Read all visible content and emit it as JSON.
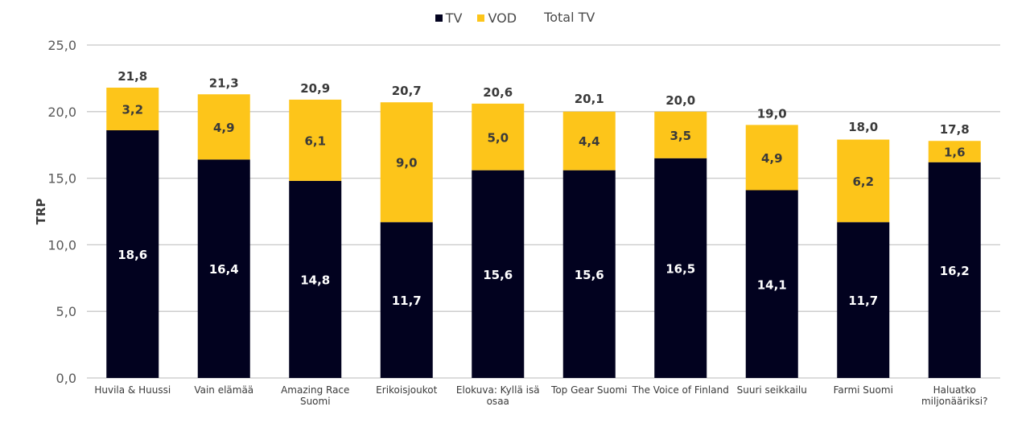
{
  "chart_data": {
    "type": "bar",
    "stacked": true,
    "title": "",
    "xlabel": "",
    "ylabel": "TRP",
    "ylim": [
      0,
      25
    ],
    "yticks": [
      0,
      5,
      10,
      15,
      20,
      25
    ],
    "ytick_labels": [
      "0,0",
      "5,0",
      "10,0",
      "15,0",
      "20,0",
      "25,0"
    ],
    "grid": true,
    "legend_position": "top-center",
    "categories": [
      "Huvila & Huussi",
      "Vain elämää",
      "Amazing Race Suomi",
      "Erikoisjoukot",
      "Elokuva: Kyllä isä osaa",
      "Top Gear Suomi",
      "The Voice of Finland",
      "Suuri seikkailu",
      "Farmi Suomi",
      "Haluatko miljonääriksi?"
    ],
    "category_label_lines": [
      [
        "Huvila & Huussi"
      ],
      [
        "Vain elämää"
      ],
      [
        "Amazing Race",
        "Suomi"
      ],
      [
        "Erikoisjoukot"
      ],
      [
        "Elokuva: Kyllä isä",
        "osaa"
      ],
      [
        "Top Gear Suomi"
      ],
      [
        "The Voice of Finland"
      ],
      [
        "Suuri seikkailu"
      ],
      [
        "Farmi Suomi"
      ],
      [
        "Haluatko",
        "miljonääriksi?"
      ]
    ],
    "series": [
      {
        "name": "TV",
        "color": "#02021f",
        "label_color": "#ffffff",
        "values": [
          18.6,
          16.4,
          14.8,
          11.7,
          15.6,
          15.6,
          16.5,
          14.1,
          11.7,
          16.2
        ],
        "labels": [
          "18,6",
          "16,4",
          "14,8",
          "11,7",
          "15,6",
          "15,6",
          "16,5",
          "14,1",
          "11,7",
          "16,2"
        ]
      },
      {
        "name": "VOD",
        "color": "#fdc51a",
        "label_color": "#3a3a3a",
        "values": [
          3.2,
          4.9,
          6.1,
          9.0,
          5.0,
          4.4,
          3.5,
          4.9,
          6.2,
          1.6
        ],
        "labels": [
          "3,2",
          "4,9",
          "6,1",
          "9,0",
          "5,0",
          "4,4",
          "3,5",
          "4,9",
          "6,2",
          "1,6"
        ]
      },
      {
        "name": "Total TV",
        "type": "label-only",
        "label_color": "#3a3a3a",
        "values": [
          21.8,
          21.3,
          20.9,
          20.7,
          20.6,
          20.1,
          20.0,
          19.0,
          18.0,
          17.8
        ],
        "labels": [
          "21,8",
          "21,3",
          "20,9",
          "20,7",
          "20,6",
          "20,1",
          "20,0",
          "19,0",
          "18,0",
          "17,8"
        ]
      }
    ]
  },
  "legend": {
    "items": [
      {
        "label": "TV",
        "color": "#02021f"
      },
      {
        "label": "VOD",
        "color": "#fdc51a"
      },
      {
        "label": "Total TV",
        "color": ""
      }
    ]
  },
  "colors": {
    "grid": "#c8c8c8",
    "axis_text": "#595959",
    "value_text": "#3a3a3a"
  }
}
